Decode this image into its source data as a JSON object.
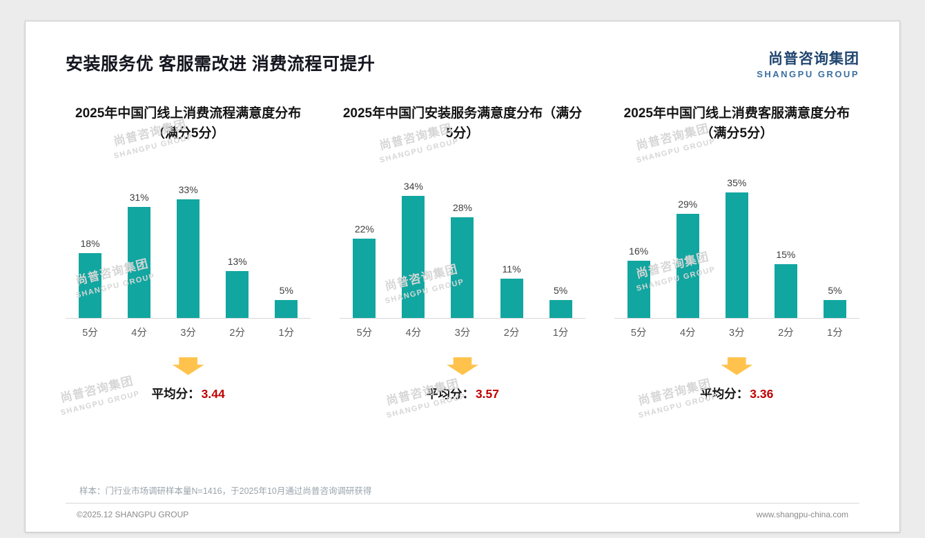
{
  "slide": {
    "title": "安装服务优 客服需改进 消费流程可提升",
    "logo": {
      "cn": "尚普咨询集团",
      "en": "SHANGPU GROUP"
    },
    "watermark": {
      "cn": "尚普咨询集团",
      "en": "SHANGPU GROUP"
    },
    "footer": {
      "note": "样本：门行业市场调研样本量N=1416，于2025年10月通过尚普咨询调研获得",
      "copyright": "©2025.12 SHANGPU GROUP",
      "website": "www.shangpu-china.com"
    }
  },
  "labels": {
    "avg_prefix": "平均分："
  },
  "colors": {
    "bar": "#12A6A0",
    "average_value": "#C00000",
    "arrow": "#FFC34D",
    "logo_blue": "#20456F"
  },
  "chart_data": [
    {
      "type": "bar",
      "title": "2025年中国门线上消费流程满意度分布（满分5分）",
      "categories": [
        "5分",
        "4分",
        "3分",
        "2分",
        "1分"
      ],
      "values": [
        18,
        31,
        33,
        13,
        5
      ],
      "unit": "%",
      "ylim": [
        0,
        40
      ],
      "grid": false,
      "average": "3.44"
    },
    {
      "type": "bar",
      "title": "2025年中国门安装服务满意度分布（满分5分）",
      "categories": [
        "5分",
        "4分",
        "3分",
        "2分",
        "1分"
      ],
      "values": [
        22,
        34,
        28,
        11,
        5
      ],
      "unit": "%",
      "ylim": [
        0,
        40
      ],
      "grid": false,
      "average": "3.57"
    },
    {
      "type": "bar",
      "title": "2025年中国门线上消费客服满意度分布（满分5分）",
      "categories": [
        "5分",
        "4分",
        "3分",
        "2分",
        "1分"
      ],
      "values": [
        16,
        29,
        35,
        15,
        5
      ],
      "unit": "%",
      "ylim": [
        0,
        40
      ],
      "grid": false,
      "average": "3.36"
    }
  ]
}
